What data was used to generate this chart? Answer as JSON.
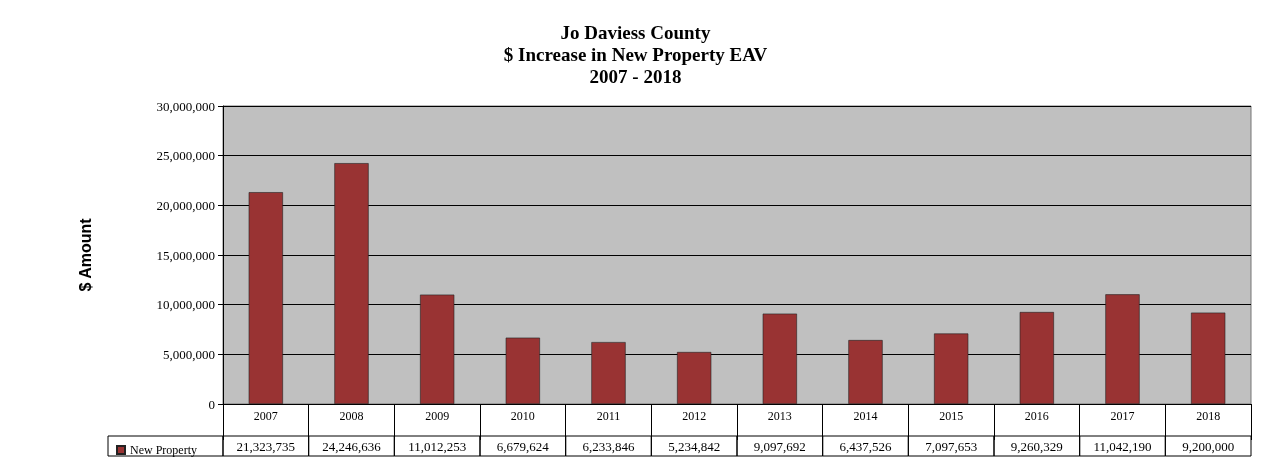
{
  "chart_data": {
    "type": "bar",
    "title": "Jo Daviess County\n$ Increase in New Property EAV\n2007 - 2018",
    "ylabel": "$ Amount",
    "categories": [
      "2007",
      "2008",
      "2009",
      "2010",
      "2011",
      "2012",
      "2013",
      "2014",
      "2015",
      "2016",
      "2017",
      "2018"
    ],
    "series": [
      {
        "name": "New Property",
        "color": "#993333",
        "values": [
          21323735,
          24246636,
          11012253,
          6679624,
          6233846,
          5234842,
          9097692,
          6437526,
          7097653,
          9260329,
          11042190,
          9200000
        ],
        "value_labels": [
          "21,323,735",
          "24,246,636",
          "11,012,253",
          "6,679,624",
          "6,233,846",
          "5,234,842",
          "9,097,692",
          "6,437,526",
          "7,097,653",
          "9,260,329",
          "11,042,190",
          "9,200,000"
        ]
      }
    ],
    "ylim": [
      0,
      30000000
    ],
    "yticks": [
      0,
      {
        "value": 5000000,
        "label": "5,000,000"
      },
      {
        "value": 10000000,
        "label": "10,000,000"
      },
      {
        "value": 15000000,
        "label": "15,000,000"
      },
      {
        "value": 20000000,
        "label": "20,000,000"
      },
      {
        "value": 25000000,
        "label": "25,000,000"
      },
      {
        "value": 30000000,
        "label": "30,000,000"
      }
    ],
    "grid": "y",
    "legend": "bottom left"
  }
}
